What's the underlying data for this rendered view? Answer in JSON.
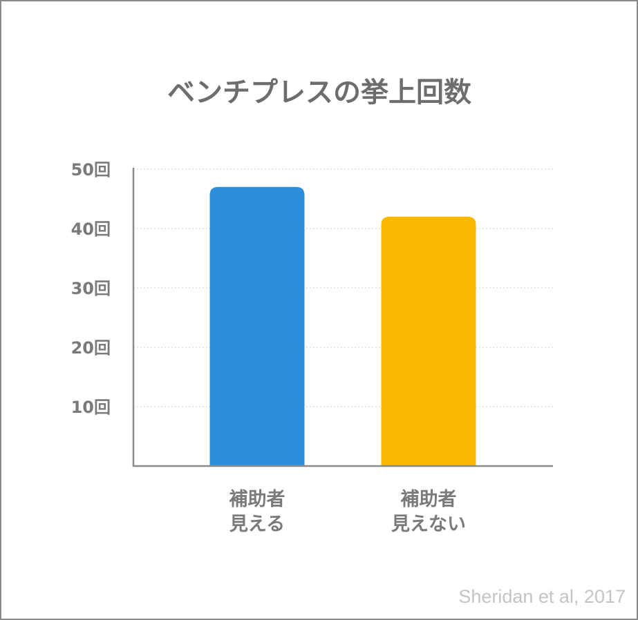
{
  "chart_data": {
    "type": "bar",
    "title": "ベンチプレスの挙上回数",
    "categories": [
      [
        "補助者",
        "見える"
      ],
      [
        "補助者",
        "見えない"
      ]
    ],
    "values": [
      47,
      42
    ],
    "colors": [
      "#2e8ed9",
      "#f8b800"
    ],
    "ylim": [
      0,
      50
    ],
    "yticks": [
      {
        "value": 10,
        "label": "10回"
      },
      {
        "value": 20,
        "label": "20回"
      },
      {
        "value": 30,
        "label": "30回"
      },
      {
        "value": 40,
        "label": "40回"
      },
      {
        "value": 50,
        "label": "50回"
      }
    ],
    "grid": true,
    "xlabel": "",
    "ylabel": ""
  },
  "source": "Sheridan et al, 2017"
}
